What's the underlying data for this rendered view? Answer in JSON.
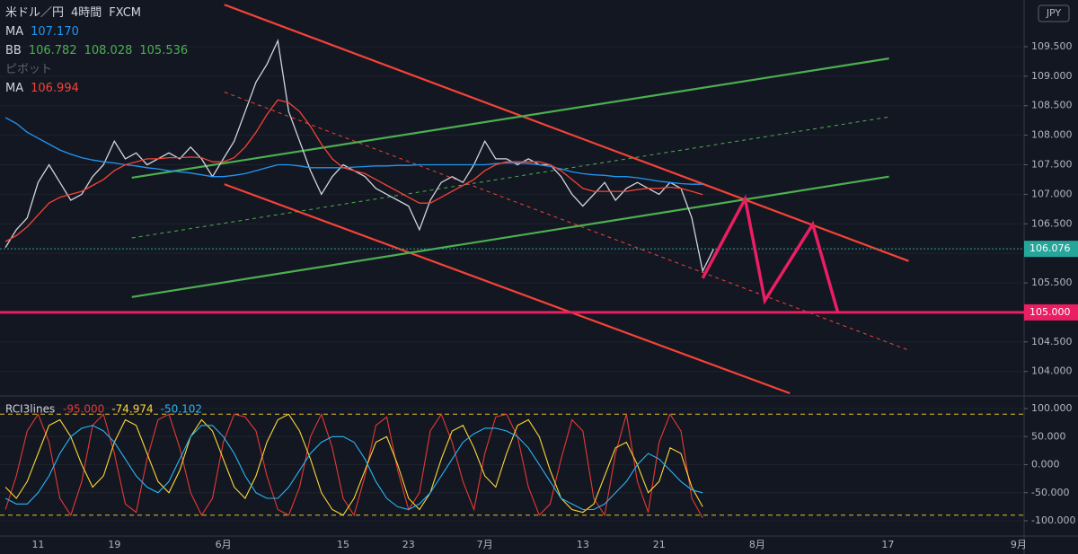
{
  "header": {
    "symbol": "米ドル／円",
    "interval": "4時間",
    "source": "FXCM",
    "currency": "JPY",
    "legend": [
      {
        "name": "MA",
        "values": [
          "107.170"
        ],
        "color": "#2196f3"
      },
      {
        "name": "BB",
        "values": [
          "106.782",
          "108.028",
          "105.536"
        ],
        "color": "#4caf50"
      },
      {
        "name": "ピボット",
        "values": [],
        "color": "#5d606b"
      },
      {
        "name": "MA",
        "values": [
          "106.994"
        ],
        "color": "#f44336"
      }
    ]
  },
  "chart_data": {
    "type": "line",
    "categories": [
      null,
      null,
      null,
      "11",
      null,
      null,
      null,
      null,
      null,
      null,
      "19",
      null,
      null,
      null,
      null,
      null,
      null,
      null,
      null,
      null,
      "6月",
      null,
      null,
      null,
      null,
      null,
      null,
      null,
      null,
      null,
      null,
      "15",
      null,
      null,
      null,
      null,
      null,
      "23",
      null,
      null,
      null,
      null,
      null,
      null,
      "7月",
      null,
      null,
      null,
      null,
      null,
      null,
      null,
      null,
      "13",
      null,
      null,
      null,
      null,
      null,
      null,
      "21",
      null,
      null,
      null,
      null,
      null,
      null,
      null,
      null,
      "8月",
      null,
      null,
      null,
      null,
      null,
      null,
      null,
      null,
      null,
      null,
      null,
      "17",
      null,
      null,
      null,
      null,
      null,
      null,
      null,
      null,
      null,
      null,
      null,
      "9月"
    ],
    "ylim": [
      103.6,
      110.29
    ],
    "yticks": [
      {
        "value": 109.5,
        "label": "109.500"
      },
      {
        "value": 109,
        "label": "109.000"
      },
      {
        "value": 108.5,
        "label": "108.500"
      },
      {
        "value": 108,
        "label": "108.000"
      },
      {
        "value": 107.5,
        "label": "107.500"
      },
      {
        "value": 107,
        "label": "107.000"
      },
      {
        "value": 106.5,
        "label": "106.500"
      },
      {
        "value": 106,
        "label": "106.000"
      },
      {
        "value": 105.5,
        "label": "105.500"
      },
      {
        "value": 105,
        "label": "105.000"
      },
      {
        "value": 104.5,
        "label": "104.500"
      },
      {
        "value": 104,
        "label": "104.000"
      }
    ],
    "series": [
      {
        "color": "#d1d4dc",
        "values": [
          106.1,
          106.4,
          106.6,
          107.2,
          107.5,
          107.2,
          106.9,
          107.0,
          107.3,
          107.5,
          107.9,
          107.6,
          107.7,
          107.5,
          107.6,
          107.7,
          107.6,
          107.8,
          107.6,
          107.3,
          107.6,
          107.9,
          108.4,
          108.9,
          109.2,
          109.6,
          108.4,
          107.9,
          107.4,
          107.0,
          107.3,
          107.5,
          107.4,
          107.3,
          107.1,
          107.0,
          106.9,
          106.8,
          106.4,
          106.9,
          107.2,
          107.3,
          107.2,
          107.5,
          107.9,
          107.6,
          107.6,
          107.5,
          107.6,
          107.5,
          107.5,
          107.3,
          107.0,
          106.8,
          107.0,
          107.2,
          106.9,
          107.1,
          107.2,
          107.1,
          107.0,
          107.2,
          107.1,
          106.6,
          105.7,
          106.076,
          null,
          null,
          null,
          null,
          null,
          null,
          null,
          null,
          null,
          null,
          null,
          null,
          null,
          null,
          null,
          null,
          null,
          null,
          null,
          null,
          null,
          null,
          null,
          null,
          null,
          null,
          null,
          null
        ]
      },
      {
        "color": "#2196f3",
        "values": [
          108.3,
          108.2,
          108.05,
          107.95,
          107.85,
          107.75,
          107.68,
          107.62,
          107.58,
          107.55,
          107.53,
          107.5,
          107.48,
          107.45,
          107.43,
          107.4,
          107.38,
          107.36,
          107.33,
          107.3,
          107.3,
          107.32,
          107.35,
          107.4,
          107.45,
          107.5,
          107.5,
          107.48,
          107.45,
          107.45,
          107.45,
          107.45,
          107.46,
          107.47,
          107.48,
          107.48,
          107.49,
          107.49,
          107.5,
          107.5,
          107.5,
          107.5,
          107.5,
          107.5,
          107.5,
          107.52,
          107.53,
          107.53,
          107.52,
          107.5,
          107.47,
          107.43,
          107.38,
          107.35,
          107.33,
          107.32,
          107.3,
          107.3,
          107.28,
          107.25,
          107.22,
          107.2,
          107.18,
          107.17,
          107.17,
          null,
          null,
          null,
          null,
          null,
          null,
          null,
          null,
          null,
          null,
          null,
          null,
          null,
          null,
          null,
          null,
          null,
          null,
          null,
          null,
          null,
          null,
          null,
          null,
          null,
          null,
          null,
          null,
          null
        ]
      },
      {
        "color": "#f44336",
        "values": [
          106.2,
          106.3,
          106.45,
          106.65,
          106.85,
          106.95,
          107.0,
          107.05,
          107.15,
          107.25,
          107.4,
          107.5,
          107.55,
          107.6,
          107.6,
          107.62,
          107.62,
          107.63,
          107.62,
          107.55,
          107.55,
          107.62,
          107.8,
          108.05,
          108.35,
          108.6,
          108.55,
          108.4,
          108.15,
          107.85,
          107.6,
          107.45,
          107.4,
          107.35,
          107.25,
          107.15,
          107.05,
          106.95,
          106.85,
          106.85,
          106.95,
          107.05,
          107.15,
          107.25,
          107.4,
          107.5,
          107.55,
          107.55,
          107.55,
          107.55,
          107.5,
          107.4,
          107.25,
          107.1,
          107.05,
          107.05,
          107.05,
          107.05,
          107.08,
          107.1,
          107.1,
          107.12,
          107.1,
          107.05,
          106.994,
          null,
          null,
          null,
          null,
          null,
          null,
          null,
          null,
          null,
          null,
          null,
          null,
          null,
          null,
          null,
          null,
          null,
          null,
          null,
          null,
          null,
          null,
          null,
          null,
          null,
          null,
          null,
          null,
          null
        ]
      }
    ],
    "hlines": [
      {
        "value": 106.076,
        "label": "106.076",
        "color": "#26a69a",
        "style": "dotted"
      },
      {
        "value": 105,
        "label": "105.000",
        "color": "#e91e63",
        "style": "solid"
      }
    ],
    "trendlines": [
      {
        "color": "#f44336",
        "dashed": false,
        "points": [
          [
            20.1,
            110.21
          ],
          [
            82.9,
            105.87
          ]
        ]
      },
      {
        "color": "#f44336",
        "dashed": false,
        "points": [
          [
            20.1,
            107.17
          ],
          [
            72.0,
            103.63
          ]
        ]
      },
      {
        "color": "#4caf50",
        "dashed": false,
        "points": [
          [
            11.6,
            107.28
          ],
          [
            81.1,
            109.3
          ]
        ]
      },
      {
        "color": "#4caf50",
        "dashed": false,
        "points": [
          [
            11.6,
            105.26
          ],
          [
            81.1,
            107.3
          ]
        ]
      },
      {
        "color": "#4caf50",
        "dashed": true,
        "points": [
          [
            11.6,
            106.26
          ],
          [
            81.1,
            108.31
          ]
        ]
      },
      {
        "color": "#f44336",
        "dashed": true,
        "points": [
          [
            20.1,
            108.73
          ],
          [
            82.9,
            104.36
          ]
        ]
      }
    ],
    "projection": {
      "color": "#e91e63",
      "points": [
        [
          64,
          105.58
        ],
        [
          67.9,
          106.92
        ],
        [
          69.7,
          105.2
        ],
        [
          74.1,
          106.49
        ],
        [
          76.4,
          105.0
        ]
      ]
    },
    "indicator": {
      "type": "line",
      "title": "RCI3lines",
      "ylim": [
        -124,
        119.2
      ],
      "yticks": [
        {
          "value": 100,
          "label": "100.000"
        },
        {
          "value": 50,
          "label": "50.000"
        },
        {
          "value": 0,
          "label": "0.000"
        },
        {
          "value": -50,
          "label": "-50.000"
        },
        {
          "value": -100,
          "label": "-100.000"
        }
      ],
      "hlines": [
        90,
        -90
      ],
      "hline_color": "#e6c229",
      "series": [
        {
          "color": "#e53935",
          "last_label": "-95.000",
          "values": [
            -80,
            -20,
            60,
            90,
            40,
            -60,
            -90,
            -30,
            70,
            90,
            20,
            -70,
            -85,
            10,
            80,
            90,
            30,
            -50,
            -90,
            -60,
            40,
            90,
            85,
            60,
            -20,
            -80,
            -90,
            -40,
            50,
            90,
            30,
            -60,
            -90,
            -20,
            70,
            85,
            -10,
            -80,
            -50,
            60,
            90,
            40,
            -30,
            -80,
            20,
            85,
            90,
            50,
            -40,
            -90,
            -70,
            10,
            80,
            60,
            -60,
            -90,
            20,
            90,
            -30,
            -85,
            40,
            90,
            60,
            -60,
            -95,
            null,
            null,
            null,
            null,
            null,
            null,
            null,
            null,
            null,
            null,
            null,
            null,
            null,
            null,
            null,
            null,
            null,
            null,
            null,
            null,
            null,
            null,
            null,
            null,
            null,
            null,
            null,
            null,
            null
          ]
        },
        {
          "color": "#fdd835",
          "last_label": "-74.974",
          "values": [
            -40,
            -60,
            -30,
            20,
            70,
            80,
            50,
            0,
            -40,
            -20,
            40,
            80,
            70,
            20,
            -30,
            -50,
            -10,
            50,
            80,
            60,
            10,
            -40,
            -60,
            -20,
            40,
            80,
            90,
            60,
            10,
            -50,
            -80,
            -90,
            -60,
            -10,
            40,
            50,
            0,
            -60,
            -80,
            -50,
            10,
            60,
            70,
            30,
            -20,
            -40,
            20,
            70,
            80,
            50,
            -10,
            -60,
            -80,
            -85,
            -70,
            -20,
            30,
            40,
            0,
            -50,
            -30,
            30,
            20,
            -40,
            -74.974,
            null,
            null,
            null,
            null,
            null,
            null,
            null,
            null,
            null,
            null,
            null,
            null,
            null,
            null,
            null,
            null,
            null,
            null,
            null,
            null,
            null,
            null,
            null,
            null,
            null,
            null,
            null,
            null,
            null
          ]
        },
        {
          "color": "#29b6f6",
          "last_label": "-50.102",
          "values": [
            -60,
            -70,
            -70,
            -50,
            -20,
            20,
            50,
            65,
            70,
            60,
            40,
            10,
            -20,
            -40,
            -50,
            -30,
            10,
            50,
            70,
            70,
            50,
            20,
            -20,
            -50,
            -60,
            -60,
            -40,
            -10,
            20,
            40,
            50,
            50,
            40,
            10,
            -30,
            -60,
            -75,
            -80,
            -70,
            -50,
            -20,
            10,
            40,
            55,
            65,
            65,
            60,
            50,
            30,
            0,
            -30,
            -60,
            -70,
            -80,
            -80,
            -70,
            -50,
            -30,
            0,
            20,
            10,
            -10,
            -30,
            -45,
            -50.102,
            null,
            null,
            null,
            null,
            null,
            null,
            null,
            null,
            null,
            null,
            null,
            null,
            null,
            null,
            null,
            null,
            null,
            null,
            null,
            null,
            null,
            null,
            null,
            null,
            null,
            null,
            null,
            null,
            null
          ]
        }
      ]
    }
  }
}
